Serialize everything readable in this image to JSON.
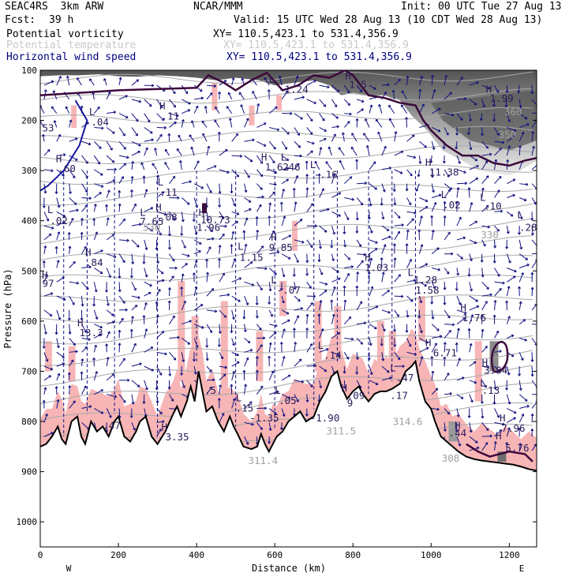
{
  "header": {
    "run": "SEAC4RS  3km ARW",
    "fcst_label": "Fcst:",
    "fcst_value": "39 h",
    "center": "NCAR/MMM",
    "init": "Init: 00 UTC Tue 27 Aug 13",
    "valid": "Valid: 15 UTC Wed 28 Aug 13 (10 CDT Wed 28 Aug 13)"
  },
  "fields": [
    {
      "name": "Potential vorticity",
      "xy": "XY= 110.5,423.1 to 531.4,356.9",
      "color": "#000000"
    },
    {
      "name": "Potential temperature",
      "xy": "XY= 110.5,423.1 to 531.4,356.9",
      "color": "#c8c8c8"
    },
    {
      "name": "Horizontal wind speed",
      "xy": "XY= 110.5,423.1 to 531.4,356.9",
      "color": "#00007f"
    }
  ],
  "colors": {
    "pv_fill": "#f7b5b5",
    "terrain_line": "#000000",
    "theta": "#a8a8a8",
    "wind": "#101080",
    "dark_contour": "#3c0a3c",
    "blue_contour": "#1414a0"
  },
  "chart_data": {
    "type": "cross-section",
    "xlabel": "Distance (km)",
    "ylabel": "Pressure (hPa)",
    "xlim": [
      0,
      1270
    ],
    "ylim": [
      1050,
      100
    ],
    "x_ticks": [
      "0",
      "200",
      "400",
      "600",
      "800",
      "1000",
      "1200"
    ],
    "y_ticks": [
      "100",
      "200",
      "300",
      "400",
      "500",
      "600",
      "700",
      "800",
      "900",
      "1000"
    ],
    "endpoints": {
      "west": "W",
      "east": "E"
    },
    "theta_labels": [
      {
        "x": 1210,
        "p": 190,
        "text": "360"
      },
      {
        "x": 1195,
        "p": 235,
        "text": "350"
      },
      {
        "x": 285,
        "p": 420,
        "text": "330"
      },
      {
        "x": 1150,
        "p": 435,
        "text": "330"
      },
      {
        "x": 770,
        "p": 826,
        "text": "311.5"
      },
      {
        "x": 940,
        "p": 807,
        "text": "314.6"
      },
      {
        "x": 570,
        "p": 885,
        "text": "311.4"
      },
      {
        "x": 1050,
        "p": 880,
        "text": "308"
      }
    ],
    "extrema": [
      {
        "x": 125,
        "p": 190,
        "text": "L"
      },
      {
        "x": 130,
        "p": 210,
        "text": ".04"
      },
      {
        "x": 5,
        "p": 222,
        "text": "53"
      },
      {
        "x": 40,
        "p": 283,
        "text": "H"
      },
      {
        "x": 45,
        "p": 303,
        "text": ".60"
      },
      {
        "x": 305,
        "p": 178,
        "text": "H"
      },
      {
        "x": 310,
        "p": 198,
        "text": ".11"
      },
      {
        "x": 585,
        "p": 125,
        "text": "L"
      },
      {
        "x": 610,
        "p": 145,
        "text": "-1.24"
      },
      {
        "x": 780,
        "p": 118,
        "text": "H"
      },
      {
        "x": 790,
        "p": 135,
        "text": "1.5"
      },
      {
        "x": 1140,
        "p": 145,
        "text": "H"
      },
      {
        "x": 1150,
        "p": 163,
        "text": "1.99"
      },
      {
        "x": 565,
        "p": 280,
        "text": "H"
      },
      {
        "x": 575,
        "p": 300,
        "text": "1.62"
      },
      {
        "x": 615,
        "p": 280,
        "text": "L"
      },
      {
        "x": 620,
        "p": 300,
        "text": ".46"
      },
      {
        "x": 690,
        "p": 295,
        "text": "L"
      },
      {
        "x": 700,
        "p": 315,
        "text": "-.16"
      },
      {
        "x": 985,
        "p": 290,
        "text": "H"
      },
      {
        "x": 995,
        "p": 310,
        "text": "11.38"
      },
      {
        "x": 300,
        "p": 330,
        "text": "L"
      },
      {
        "x": 305,
        "p": 350,
        "text": ".11"
      },
      {
        "x": 1025,
        "p": 355,
        "text": "L"
      },
      {
        "x": 1030,
        "p": 375,
        "text": ".02"
      },
      {
        "x": 1125,
        "p": 360,
        "text": "L"
      },
      {
        "x": 1135,
        "p": 378,
        "text": ".10"
      },
      {
        "x": 18,
        "p": 385,
        "text": "L"
      },
      {
        "x": 25,
        "p": 407,
        "text": ".02"
      },
      {
        "x": 255,
        "p": 390,
        "text": "L"
      },
      {
        "x": 255,
        "p": 408,
        "text": "7.65"
      },
      {
        "x": 295,
        "p": 380,
        "text": "H"
      },
      {
        "x": 305,
        "p": 400,
        "text": ".08"
      },
      {
        "x": 405,
        "p": 390,
        "text": "H"
      },
      {
        "x": 410,
        "p": 405,
        "text": "10.73"
      },
      {
        "x": 400,
        "p": 420,
        "text": "1.96"
      },
      {
        "x": 1220,
        "p": 395,
        "text": "L"
      },
      {
        "x": 1230,
        "p": 420,
        "text": ".28"
      },
      {
        "x": 590,
        "p": 440,
        "text": "H"
      },
      {
        "x": 585,
        "p": 460,
        "text": "9.85"
      },
      {
        "x": 505,
        "p": 458,
        "text": "L"
      },
      {
        "x": 510,
        "p": 480,
        "text": "1.15"
      },
      {
        "x": 115,
        "p": 470,
        "text": "H"
      },
      {
        "x": 115,
        "p": 490,
        "text": ".84"
      },
      {
        "x": 830,
        "p": 480,
        "text": "H"
      },
      {
        "x": 830,
        "p": 500,
        "text": "1.03"
      },
      {
        "x": 0,
        "p": 515,
        "text": "H"
      },
      {
        "x": 5,
        "p": 532,
        "text": "97"
      },
      {
        "x": 940,
        "p": 510,
        "text": "L"
      },
      {
        "x": 955,
        "p": 525,
        "text": "1.28"
      },
      {
        "x": 960,
        "p": 545,
        "text": "1.58"
      },
      {
        "x": 590,
        "p": 525,
        "text": "L"
      },
      {
        "x": 605,
        "p": 545,
        "text": "-.07"
      },
      {
        "x": 1075,
        "p": 580,
        "text": "H"
      },
      {
        "x": 1080,
        "p": 600,
        "text": "1.76"
      },
      {
        "x": 95,
        "p": 610,
        "text": "H"
      },
      {
        "x": 100,
        "p": 630,
        "text": "13.3"
      },
      {
        "x": 985,
        "p": 650,
        "text": "H"
      },
      {
        "x": 1005,
        "p": 670,
        "text": "6.71"
      },
      {
        "x": 710,
        "p": 655,
        "text": "L"
      },
      {
        "x": 725,
        "p": 675,
        "text": ".14"
      },
      {
        "x": 1130,
        "p": 690,
        "text": "H"
      },
      {
        "x": 1135,
        "p": 705,
        "text": "3.84"
      },
      {
        "x": 895,
        "p": 700,
        "text": "L"
      },
      {
        "x": 910,
        "p": 720,
        "text": ".47"
      },
      {
        "x": 1125,
        "p": 730,
        "text": "L"
      },
      {
        "x": 1130,
        "p": 745,
        "text": ".13"
      },
      {
        "x": 770,
        "p": 740,
        "text": "H"
      },
      {
        "x": 785,
        "p": 755,
        "text": ".09"
      },
      {
        "x": 785,
        "p": 770,
        "text": "9"
      },
      {
        "x": 895,
        "p": 755,
        "text": ".17"
      },
      {
        "x": 420,
        "p": 745,
        "text": ".5"
      },
      {
        "x": 500,
        "p": 760,
        "text": "L"
      },
      {
        "x": 500,
        "p": 780,
        "text": ".15"
      },
      {
        "x": 600,
        "p": 745,
        "text": "L"
      },
      {
        "x": 610,
        "p": 765,
        "text": ".05"
      },
      {
        "x": 535,
        "p": 800,
        "text": "-1.35"
      },
      {
        "x": 690,
        "p": 800,
        "text": "-1.90"
      },
      {
        "x": 1060,
        "p": 815,
        "text": "H"
      },
      {
        "x": 1045,
        "p": 830,
        "text": ".44"
      },
      {
        "x": 1175,
        "p": 800,
        "text": "H"
      },
      {
        "x": 1180,
        "p": 820,
        "text": "7.96"
      },
      {
        "x": 160,
        "p": 815,
        "text": ".47"
      },
      {
        "x": 310,
        "p": 818,
        "text": "H"
      },
      {
        "x": 320,
        "p": 838,
        "text": "3.35"
      },
      {
        "x": 1165,
        "p": 835,
        "text": "H"
      },
      {
        "x": 1190,
        "p": 860,
        "text": "5.76"
      }
    ]
  }
}
